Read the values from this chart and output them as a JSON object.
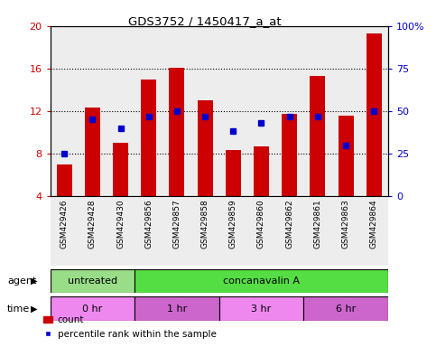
{
  "title": "GDS3752 / 1450417_a_at",
  "samples": [
    "GSM429426",
    "GSM429428",
    "GSM429430",
    "GSM429856",
    "GSM429857",
    "GSM429858",
    "GSM429859",
    "GSM429860",
    "GSM429862",
    "GSM429861",
    "GSM429863",
    "GSM429864"
  ],
  "count_values": [
    7.0,
    12.3,
    9.0,
    15.0,
    16.1,
    13.0,
    8.3,
    8.7,
    11.7,
    15.3,
    11.6,
    19.3
  ],
  "percentile_pct": [
    25,
    45,
    40,
    47,
    50,
    47,
    38,
    43,
    47,
    47,
    30,
    50
  ],
  "bar_bottom": 4.0,
  "ylim_left": [
    4,
    20
  ],
  "ylim_right": [
    0,
    100
  ],
  "yticks_left": [
    4,
    8,
    12,
    16,
    20
  ],
  "ytick_labels_left": [
    "4",
    "8",
    "12",
    "16",
    "20"
  ],
  "ytick_labels_right": [
    "0",
    "25",
    "50",
    "75",
    "100%"
  ],
  "bar_color": "#cc0000",
  "dot_color": "#0000cc",
  "agent_groups": [
    {
      "label": "untreated",
      "start": 0,
      "end": 3,
      "color": "#99dd88"
    },
    {
      "label": "concanavalin A",
      "start": 3,
      "end": 12,
      "color": "#55dd44"
    }
  ],
  "time_groups": [
    {
      "label": "0 hr",
      "start": 0,
      "end": 3,
      "color": "#ee88ee"
    },
    {
      "label": "1 hr",
      "start": 3,
      "end": 6,
      "color": "#cc66cc"
    },
    {
      "label": "3 hr",
      "start": 6,
      "end": 9,
      "color": "#ee88ee"
    },
    {
      "label": "6 hr",
      "start": 9,
      "end": 12,
      "color": "#cc66cc"
    }
  ],
  "grid_color": "#000000",
  "bg_color": "#ffffff",
  "plot_bg_color": "#ffffff",
  "col_bg_color": "#cccccc",
  "legend_count_label": "count",
  "legend_pct_label": "percentile rank within the sample",
  "agent_label": "agent",
  "time_label": "time",
  "left_tick_color": "#cc0000",
  "right_tick_color": "#0000cc"
}
